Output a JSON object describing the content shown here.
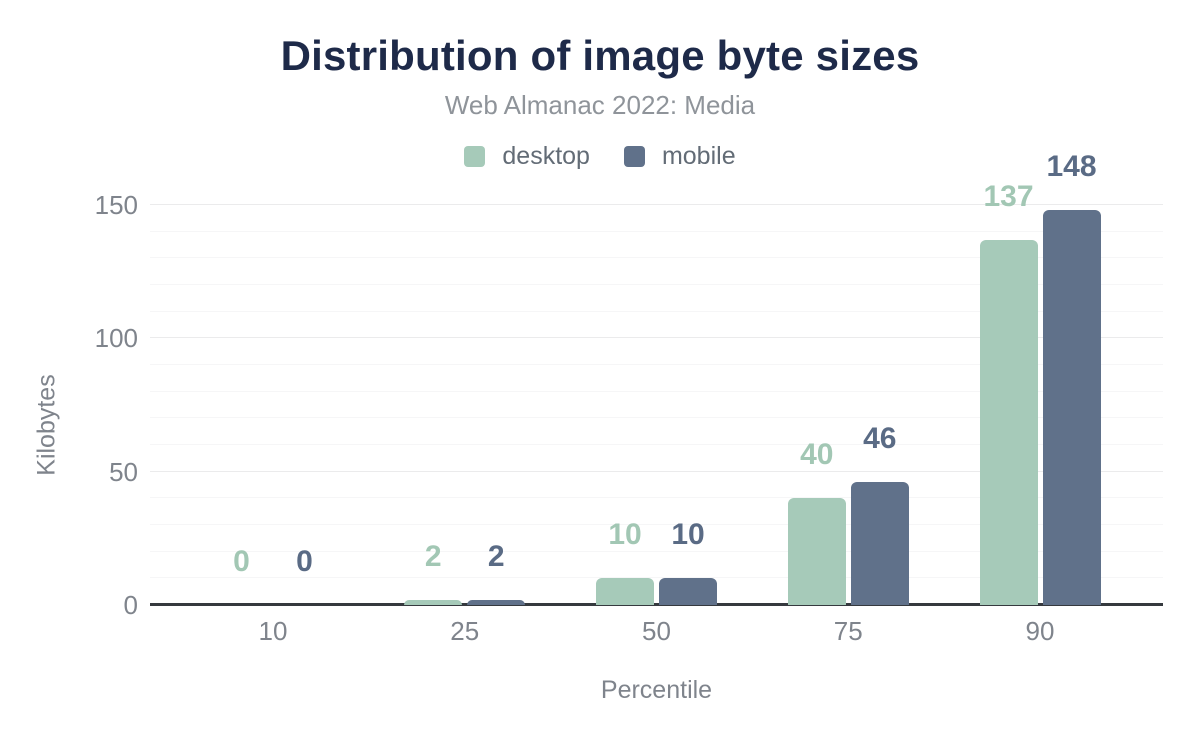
{
  "header": {
    "title": "Distribution of image byte sizes",
    "subtitle": "Web Almanac 2022: Media"
  },
  "chart_data": {
    "type": "bar",
    "title": "Distribution of image byte sizes",
    "subtitle": "Web Almanac 2022: Media",
    "categories": [
      "10",
      "25",
      "50",
      "75",
      "90"
    ],
    "series": [
      {
        "name": "desktop",
        "color": "#a6cab9",
        "label_color": "#a2c7b4",
        "values": [
          0,
          2,
          10,
          40,
          137
        ]
      },
      {
        "name": "mobile",
        "color": "#60718a",
        "label_color": "#5a6b85",
        "values": [
          0,
          2,
          10,
          46,
          148
        ]
      }
    ],
    "xlabel": "Percentile",
    "ylabel": "Kilobytes",
    "ylim": [
      0,
      150
    ],
    "yticks": [
      0,
      50,
      100,
      150
    ],
    "value_labels_shown": true,
    "legend_position": "top",
    "grid": {
      "minor_step": 10,
      "major_step": 50,
      "minor_color": "#f6f6f7",
      "major_color": "#ebebec",
      "axis_line_color": "#35393e"
    }
  },
  "colors": {
    "title": "#1e2a49",
    "subtitle": "#8f949a",
    "tick_label": "#7f848c",
    "legend_text": "#636c76",
    "background": "#ffffff"
  }
}
